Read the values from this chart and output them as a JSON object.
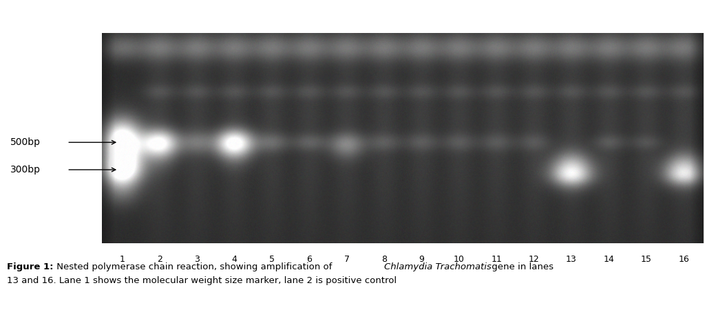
{
  "fig_width": 10.24,
  "fig_height": 4.57,
  "dpi": 100,
  "background_color": "#ffffff",
  "gel_bg_gray": 45,
  "lane_labels": [
    "1",
    "2",
    "3",
    "4",
    "5",
    "6",
    "7",
    "8",
    "9",
    "10",
    "11",
    "12",
    "13",
    "14",
    "15",
    "16"
  ],
  "marker_label_500": "500bp",
  "marker_label_300": "300bp",
  "caption_bold": "Figure 1:",
  "caption_normal": " Nested polymerase chain reaction, showing amplification of ",
  "caption_italic": "Chlamydia Trachomatis",
  "caption_end": " gene in lanes",
  "caption_line2": "13 and 16. Lane 1 shows the molecular weight size marker, lane 2 is positive control"
}
